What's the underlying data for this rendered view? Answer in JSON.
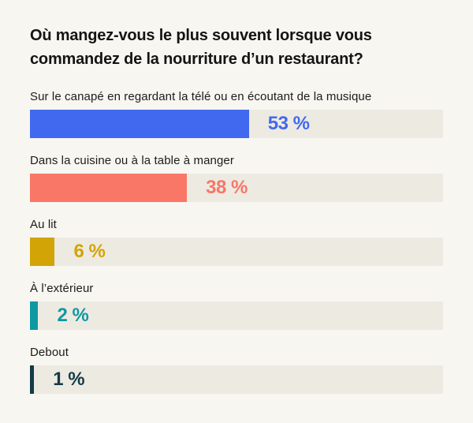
{
  "title": "Où mangez-vous le plus souvent lorsque vous commandez de la nourriture d’un restaurant?",
  "colors": {
    "background": "#f8f6f1",
    "track": "#edeae2",
    "title_text": "#141414",
    "label_text": "#1c1c1c"
  },
  "chart_data": {
    "type": "bar",
    "orientation": "horizontal",
    "title": "Où mangez-vous le plus souvent lorsque vous commandez de la nourriture d’un restaurant?",
    "categories": [
      "Sur le canapé en regardant la télé ou en écoutant de la musique",
      "Dans la cuisine ou à la table à manger",
      "Au lit",
      "À l’extérieur",
      "Debout"
    ],
    "values": [
      53,
      38,
      6,
      2,
      1
    ],
    "value_labels": [
      "53 %",
      "38 %",
      "6 %",
      "2 %",
      "1 %"
    ],
    "unit": "%",
    "xlim": [
      0,
      100
    ],
    "bar_colors": [
      "#4169f0",
      "#f87767",
      "#d2a406",
      "#0f99a1",
      "#123b47"
    ],
    "grid": false,
    "legend": false
  }
}
